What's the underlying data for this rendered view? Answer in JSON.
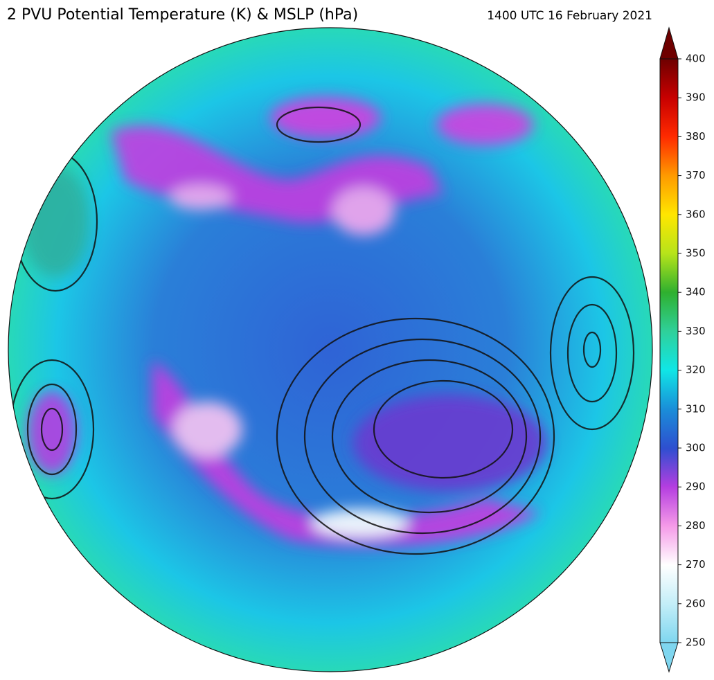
{
  "title": "2 PVU Potential Temperature (K) & MSLP (hPa)",
  "timestamp": "1400 UTC 16 February 2021",
  "colorbar": {
    "lim": [
      250,
      400
    ],
    "ticks": [
      250,
      260,
      270,
      280,
      290,
      300,
      310,
      320,
      330,
      340,
      350,
      360,
      370,
      380,
      390,
      400
    ]
  }
}
